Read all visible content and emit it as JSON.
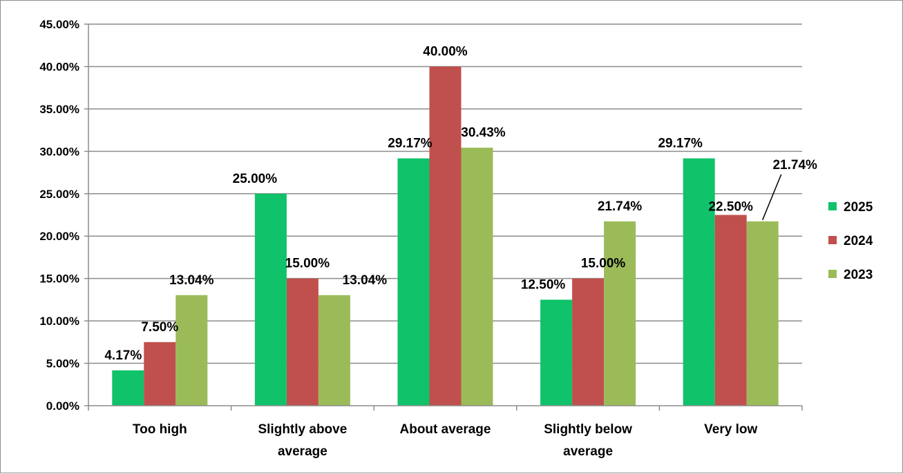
{
  "chart_data": {
    "type": "bar",
    "categories": [
      [
        "Too high"
      ],
      [
        "Slightly above",
        "average"
      ],
      [
        "About average"
      ],
      [
        "Slightly below",
        "average"
      ],
      [
        "Very low"
      ]
    ],
    "series": [
      {
        "name": "2025",
        "color": "#10C26A",
        "values": [
          4.17,
          25.0,
          29.17,
          12.5,
          29.17
        ],
        "labels": [
          "4.17%",
          "25.00%",
          "29.17%",
          "12.50%",
          "29.17%"
        ]
      },
      {
        "name": "2024",
        "color": "#C0504D",
        "values": [
          7.5,
          15.0,
          40.0,
          15.0,
          22.5
        ],
        "labels": [
          "7.50%",
          "15.00%",
          "40.00%",
          "15.00%",
          "22.50%"
        ]
      },
      {
        "name": "2023",
        "color": "#9BBB59",
        "values": [
          13.04,
          13.04,
          30.43,
          21.74,
          21.74
        ],
        "labels": [
          "13.04%",
          "13.04%",
          "30.43%",
          "21.74%",
          "21.74%"
        ]
      }
    ],
    "y_ticks": [
      "0.00%",
      "5.00%",
      "10.00%",
      "15.00%",
      "20.00%",
      "25.00%",
      "30.00%",
      "35.00%",
      "40.00%",
      "45.00%"
    ],
    "ylim": [
      0,
      45
    ],
    "y_step": 5,
    "grid": true,
    "legend": "right",
    "gridline_color": "#8c8c8c",
    "axis_color": "#8c8c8c"
  }
}
